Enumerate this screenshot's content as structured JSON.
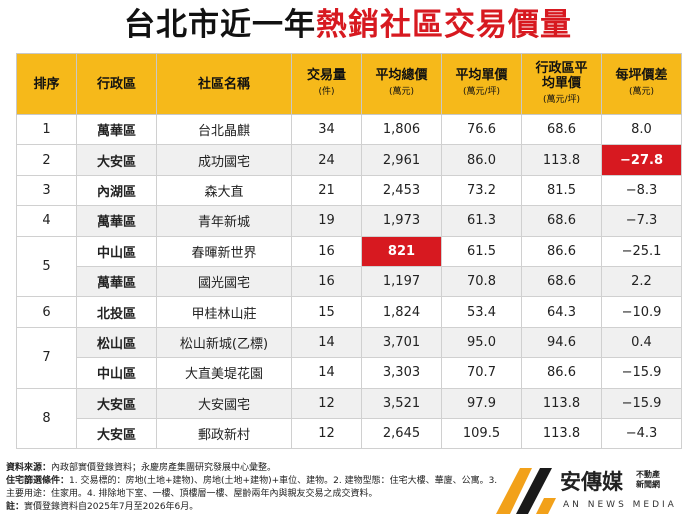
{
  "title": {
    "part1": "台北市近一年",
    "part2": "熱銷社區交易價量"
  },
  "headers": [
    {
      "label": "排序",
      "unit": ""
    },
    {
      "label": "行政區",
      "unit": ""
    },
    {
      "label": "社區名稱",
      "unit": ""
    },
    {
      "label": "交易量",
      "unit": "(件)"
    },
    {
      "label": "平均總價",
      "unit": "(萬元)"
    },
    {
      "label": "平均單價",
      "unit": "(萬元/坪)"
    },
    {
      "label": "行政區平均單價",
      "unit": "(萬元/坪)"
    },
    {
      "label": "每坪價差",
      "unit": "(萬元)"
    }
  ],
  "rows": [
    {
      "rank": "1",
      "district": "萬華區",
      "name": "台北晶麒",
      "volume": "34",
      "total": "1,806",
      "unit_price": "76.6",
      "district_avg": "68.6",
      "diff": "8.0"
    },
    {
      "rank": "2",
      "district": "大安區",
      "name": "成功國宅",
      "volume": "24",
      "total": "2,961",
      "unit_price": "86.0",
      "district_avg": "113.8",
      "diff": "−27.8"
    },
    {
      "rank": "3",
      "district": "內湖區",
      "name": "森大直",
      "volume": "21",
      "total": "2,453",
      "unit_price": "73.2",
      "district_avg": "81.5",
      "diff": "−8.3"
    },
    {
      "rank": "4",
      "district": "萬華區",
      "name": "青年新城",
      "volume": "19",
      "total": "1,973",
      "unit_price": "61.3",
      "district_avg": "68.6",
      "diff": "−7.3"
    },
    {
      "rank": "5",
      "district": "中山區",
      "name": "春暉新世界",
      "volume": "16",
      "total": "821",
      "unit_price": "61.5",
      "district_avg": "86.6",
      "diff": "−25.1"
    },
    {
      "rank": "",
      "district": "萬華區",
      "name": "國光國宅",
      "volume": "16",
      "total": "1,197",
      "unit_price": "70.8",
      "district_avg": "68.6",
      "diff": "2.2"
    },
    {
      "rank": "6",
      "district": "北投區",
      "name": "甲桂林山莊",
      "volume": "15",
      "total": "1,824",
      "unit_price": "53.4",
      "district_avg": "64.3",
      "diff": "−10.9"
    },
    {
      "rank": "7",
      "district": "松山區",
      "name": "松山新城(乙標)",
      "volume": "14",
      "total": "3,701",
      "unit_price": "95.0",
      "district_avg": "94.6",
      "diff": "0.4"
    },
    {
      "rank": "",
      "district": "中山區",
      "name": "大直美堤花園",
      "volume": "14",
      "total": "3,303",
      "unit_price": "70.7",
      "district_avg": "86.6",
      "diff": "−15.9"
    },
    {
      "rank": "8",
      "district": "大安區",
      "name": "大安國宅",
      "volume": "12",
      "total": "3,521",
      "unit_price": "97.9",
      "district_avg": "113.8",
      "diff": "−15.9"
    },
    {
      "rank": "",
      "district": "大安區",
      "name": "郵政新村",
      "volume": "12",
      "total": "2,645",
      "unit_price": "109.5",
      "district_avg": "113.8",
      "diff": "−4.3"
    }
  ],
  "footer": {
    "source_label": "資料來源：",
    "source": "內政部實價登錄資料；永慶房產集團研究發展中心彙整。",
    "criteria_label": "住宅篩選條件：",
    "criteria": "1. 交易標的：房地(土地+建物)、房地(土地+建物)+車位、建物。2. 建物型態：住宅大樓、華廈、公寓。3. 主要用途：住家用。4. 排除地下室、一樓、頂樓層一樓、屋齡兩年內與親友交易之成交資料。",
    "note_label": "註：",
    "note": "實價登錄資料自2025年7月至2026年6月。"
  },
  "logo": {
    "name": "安傳媒",
    "sub1": "不動產",
    "sub2": "新聞網",
    "english": "AN NEWS MEDIA"
  },
  "colors": {
    "header_bg": "#f6b91a",
    "accent": "#d71920",
    "alt_row": "#f0f0f0"
  }
}
